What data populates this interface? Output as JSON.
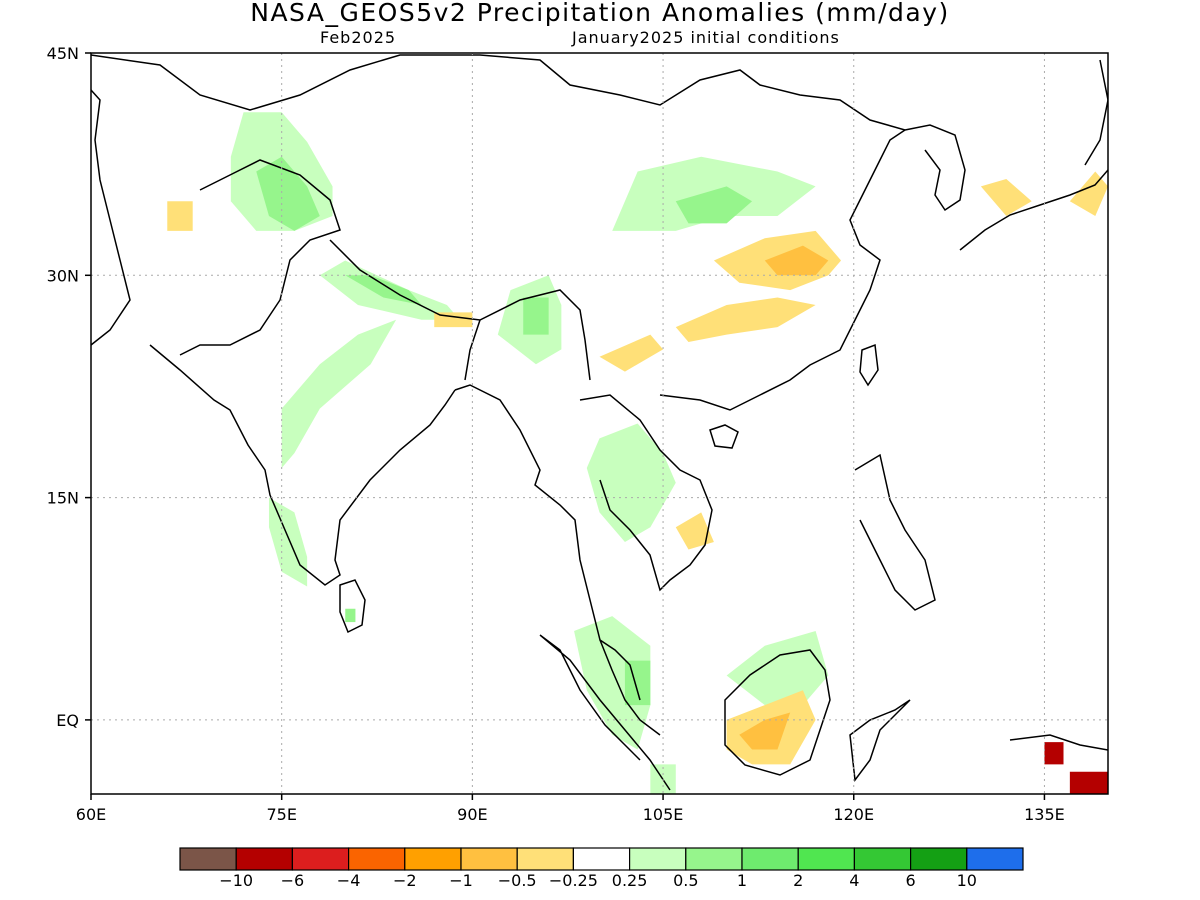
{
  "title": "NASA_GEOS5v2 Precipitation Anomalies (mm/day)",
  "subtitle_left": "Feb2025",
  "subtitle_right": "January2025 initial conditions",
  "map": {
    "lon_range": [
      60,
      140
    ],
    "lat_range": [
      -5,
      45
    ],
    "grid": true,
    "lon_ticks": [
      "60E",
      "75E",
      "90E",
      "105E",
      "120E",
      "135E"
    ],
    "lat_ticks": [
      "45N",
      "30N",
      "15N",
      "EQ"
    ]
  },
  "colorbar": {
    "colors": [
      "#7b5548",
      "#b40000",
      "#dc1e1e",
      "#fa6400",
      "#ffa000",
      "#ffc040",
      "#ffe078",
      "#ffffff",
      "#c8ffbe",
      "#96f58c",
      "#6eeb6e",
      "#50e650",
      "#34c834",
      "#14a014",
      "#1e6eeb"
    ],
    "labels": [
      "−10",
      "−6",
      "−4",
      "−2",
      "−1",
      "−0.5",
      "−0.25",
      "0.25",
      "0.5",
      "1",
      "2",
      "4",
      "6",
      "10"
    ]
  },
  "anomaly_regions": [
    {
      "level": "0.5",
      "polygon": [
        [
          72,
          41
        ],
        [
          75,
          41
        ],
        [
          77,
          39
        ],
        [
          79,
          36
        ],
        [
          79,
          34
        ],
        [
          76,
          33
        ],
        [
          73,
          33
        ],
        [
          71,
          35
        ],
        [
          71,
          38
        ]
      ]
    },
    {
      "level": "1",
      "polygon": [
        [
          73,
          37
        ],
        [
          75,
          38
        ],
        [
          77,
          36
        ],
        [
          78,
          34
        ],
        [
          76,
          33
        ],
        [
          74,
          34
        ]
      ]
    },
    {
      "level": "0.5",
      "polygon": [
        [
          78,
          30
        ],
        [
          81,
          28
        ],
        [
          86,
          27
        ],
        [
          89,
          27
        ],
        [
          88,
          28
        ],
        [
          85,
          29
        ],
        [
          80,
          31
        ]
      ]
    },
    {
      "level": "1",
      "polygon": [
        [
          80,
          30
        ],
        [
          83,
          28.5
        ],
        [
          86,
          28
        ],
        [
          85,
          29
        ],
        [
          82,
          30
        ]
      ]
    },
    {
      "level": "0.5",
      "polygon": [
        [
          93,
          29
        ],
        [
          96,
          30
        ],
        [
          97,
          28
        ],
        [
          97,
          25
        ],
        [
          95,
          24
        ],
        [
          92,
          26
        ]
      ]
    },
    {
      "level": "1",
      "polygon": [
        [
          94,
          28.5
        ],
        [
          96,
          28.5
        ],
        [
          96,
          26
        ],
        [
          94,
          26
        ]
      ]
    },
    {
      "level": "0.5",
      "polygon": [
        [
          75,
          21
        ],
        [
          78,
          24
        ],
        [
          81,
          26
        ],
        [
          84,
          27
        ],
        [
          82,
          24
        ],
        [
          78,
          21
        ],
        [
          76,
          18
        ],
        [
          75,
          17
        ]
      ]
    },
    {
      "level": "0.5",
      "polygon": [
        [
          74,
          15
        ],
        [
          76,
          14
        ],
        [
          77,
          11
        ],
        [
          77,
          9
        ],
        [
          75,
          10
        ],
        [
          74,
          13
        ]
      ]
    },
    {
      "level": "1",
      "polygon": [
        [
          80,
          7.5
        ],
        [
          80.8,
          7.5
        ],
        [
          80.8,
          6.6
        ],
        [
          80,
          6.6
        ]
      ]
    },
    {
      "level": "0.5",
      "polygon": [
        [
          100,
          19
        ],
        [
          103,
          20
        ],
        [
          105,
          18
        ],
        [
          106,
          16
        ],
        [
          104,
          13
        ],
        [
          102,
          12
        ],
        [
          100,
          14
        ],
        [
          99,
          17
        ]
      ]
    },
    {
      "level": "0.5",
      "polygon": [
        [
          103,
          37
        ],
        [
          108,
          38
        ],
        [
          114,
          37
        ],
        [
          117,
          36
        ],
        [
          114,
          34
        ],
        [
          110,
          34
        ],
        [
          106,
          33
        ],
        [
          101,
          33
        ]
      ]
    },
    {
      "level": "1",
      "polygon": [
        [
          106,
          35
        ],
        [
          110,
          36
        ],
        [
          112,
          35
        ],
        [
          110,
          33.5
        ],
        [
          107,
          33.5
        ]
      ]
    },
    {
      "level": "-0.25",
      "polygon": [
        [
          109,
          31
        ],
        [
          113,
          32.5
        ],
        [
          117,
          33
        ],
        [
          119,
          31
        ],
        [
          118,
          30
        ],
        [
          115,
          29
        ],
        [
          111,
          29.5
        ]
      ]
    },
    {
      "level": "-0.5",
      "polygon": [
        [
          113,
          31
        ],
        [
          116,
          32
        ],
        [
          118,
          31
        ],
        [
          117,
          30
        ],
        [
          114,
          30
        ]
      ]
    },
    {
      "level": "-0.25",
      "polygon": [
        [
          106,
          26.5
        ],
        [
          110,
          28
        ],
        [
          114,
          28.5
        ],
        [
          117,
          28
        ],
        [
          114,
          26.5
        ],
        [
          110,
          26
        ],
        [
          107,
          25.5
        ]
      ]
    },
    {
      "level": "-0.25",
      "polygon": [
        [
          100,
          24.5
        ],
        [
          104,
          26
        ],
        [
          105,
          25
        ],
        [
          102,
          23.5
        ]
      ]
    },
    {
      "level": "-0.25",
      "polygon": [
        [
          66,
          35
        ],
        [
          68,
          35
        ],
        [
          68,
          33
        ],
        [
          66,
          33
        ]
      ]
    },
    {
      "level": "-0.25",
      "polygon": [
        [
          87,
          27.5
        ],
        [
          90,
          27.5
        ],
        [
          90,
          26.5
        ],
        [
          87,
          26.5
        ]
      ]
    },
    {
      "level": "-0.25",
      "polygon": [
        [
          106,
          13
        ],
        [
          108,
          14
        ],
        [
          109,
          12
        ],
        [
          107,
          11.5
        ]
      ]
    },
    {
      "level": "0.5",
      "polygon": [
        [
          98,
          6
        ],
        [
          101,
          7
        ],
        [
          104,
          5
        ],
        [
          104,
          1
        ],
        [
          103,
          -2
        ],
        [
          101,
          -1
        ],
        [
          99,
          2
        ]
      ]
    },
    {
      "level": "1",
      "polygon": [
        [
          102,
          4
        ],
        [
          104,
          4
        ],
        [
          104,
          1
        ],
        [
          102,
          1
        ]
      ]
    },
    {
      "level": "0.5",
      "polygon": [
        [
          110,
          3
        ],
        [
          113,
          5
        ],
        [
          117,
          6
        ],
        [
          118,
          3
        ],
        [
          116,
          1
        ],
        [
          113,
          1
        ]
      ]
    },
    {
      "level": "-0.25",
      "polygon": [
        [
          110,
          0
        ],
        [
          113,
          1
        ],
        [
          116,
          2
        ],
        [
          117,
          0
        ],
        [
          115,
          -3
        ],
        [
          112,
          -3
        ],
        [
          110,
          -2
        ]
      ]
    },
    {
      "level": "-0.5",
      "polygon": [
        [
          111,
          -1
        ],
        [
          113,
          0
        ],
        [
          115,
          0.5
        ],
        [
          114,
          -2
        ],
        [
          112,
          -2
        ]
      ]
    },
    {
      "level": "-0.25",
      "polygon": [
        [
          130,
          36
        ],
        [
          132,
          36.5
        ],
        [
          134,
          35
        ],
        [
          132,
          34
        ]
      ]
    },
    {
      "level": "-0.25",
      "polygon": [
        [
          137,
          35
        ],
        [
          139,
          37
        ],
        [
          140,
          36
        ],
        [
          139,
          34
        ]
      ]
    },
    {
      "level": "-6",
      "polygon": [
        [
          135,
          -1.5
        ],
        [
          136.5,
          -1.5
        ],
        [
          136.5,
          -3
        ],
        [
          135,
          -3
        ]
      ]
    },
    {
      "level": "-6",
      "polygon": [
        [
          137,
          -3.5
        ],
        [
          140,
          -3.5
        ],
        [
          140,
          -5
        ],
        [
          137,
          -5
        ]
      ]
    },
    {
      "level": "0.5",
      "polygon": [
        [
          104,
          -3
        ],
        [
          106,
          -3
        ],
        [
          106,
          -5
        ],
        [
          104,
          -5
        ]
      ]
    }
  ]
}
